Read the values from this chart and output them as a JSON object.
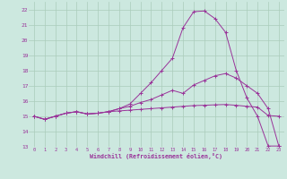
{
  "xlabel": "Windchill (Refroidissement éolien,°C)",
  "background_color": "#cce8df",
  "grid_color": "#aaccbb",
  "line_color": "#993399",
  "xlim": [
    -0.5,
    23.5
  ],
  "ylim": [
    13,
    22.5
  ],
  "yticks": [
    13,
    14,
    15,
    16,
    17,
    18,
    19,
    20,
    21,
    22
  ],
  "xticks": [
    0,
    1,
    2,
    3,
    4,
    5,
    6,
    7,
    8,
    9,
    10,
    11,
    12,
    13,
    14,
    15,
    16,
    17,
    18,
    19,
    20,
    21,
    22,
    23
  ],
  "line1_x": [
    0,
    1,
    2,
    3,
    4,
    5,
    6,
    7,
    8,
    9,
    10,
    11,
    12,
    13,
    14,
    15,
    16,
    17,
    18,
    19,
    20,
    21,
    22,
    23
  ],
  "line1_y": [
    15.0,
    14.8,
    15.0,
    15.2,
    15.3,
    15.15,
    15.2,
    15.3,
    15.35,
    15.4,
    15.45,
    15.5,
    15.55,
    15.6,
    15.65,
    15.7,
    15.72,
    15.75,
    15.77,
    15.72,
    15.65,
    15.6,
    15.05,
    15.0
  ],
  "line2_x": [
    0,
    1,
    2,
    3,
    4,
    5,
    6,
    7,
    8,
    9,
    10,
    11,
    12,
    13,
    14,
    15,
    16,
    17,
    18,
    19,
    20,
    21,
    22,
    23
  ],
  "line2_y": [
    15.0,
    14.8,
    15.0,
    15.2,
    15.3,
    15.15,
    15.2,
    15.3,
    15.5,
    15.65,
    15.9,
    16.1,
    16.4,
    16.7,
    16.5,
    17.05,
    17.35,
    17.65,
    17.8,
    17.5,
    17.0,
    16.5,
    15.5,
    13.05
  ],
  "line3_x": [
    0,
    1,
    2,
    3,
    4,
    5,
    6,
    7,
    8,
    9,
    10,
    11,
    12,
    13,
    14,
    15,
    16,
    17,
    18,
    19,
    20,
    21,
    22,
    23
  ],
  "line3_y": [
    15.0,
    14.8,
    15.0,
    15.2,
    15.3,
    15.15,
    15.2,
    15.3,
    15.5,
    15.8,
    16.5,
    17.2,
    18.0,
    18.8,
    20.8,
    21.85,
    21.9,
    21.4,
    20.5,
    18.0,
    16.2,
    15.0,
    13.05,
    13.05
  ]
}
